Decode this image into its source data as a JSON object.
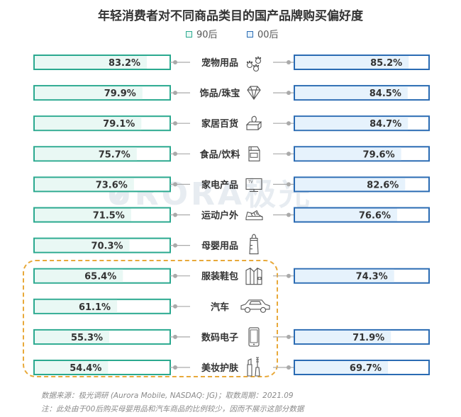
{
  "chart_data": {
    "type": "bar",
    "title": "年轻消费者对不同商品类目的国产品牌购买偏好度",
    "legend_position": "top-center",
    "series": [
      {
        "name": "90后",
        "color": "#2aa98f",
        "fill": "#e9f8f4",
        "values": [
          83.2,
          79.9,
          79.1,
          75.7,
          73.6,
          71.5,
          70.3,
          65.4,
          61.1,
          55.3,
          54.4
        ]
      },
      {
        "name": "00后",
        "color": "#2a6bb3",
        "fill": "#e6f2fc",
        "values": [
          85.2,
          84.5,
          84.7,
          79.6,
          82.6,
          76.6,
          null,
          74.3,
          null,
          71.9,
          69.7
        ]
      }
    ],
    "categories": [
      "宠物用品",
      "饰品/珠宝",
      "家居百货",
      "食品/饮料",
      "家电产品",
      "运动户外",
      "母婴用品",
      "服装鞋包",
      "汽车",
      "数码电子",
      "美妆护肤"
    ],
    "value_labels_90": [
      "83.2%",
      "79.9%",
      "79.1%",
      "75.7%",
      "73.6%",
      "71.5%",
      "70.3%",
      "65.4%",
      "61.1%",
      "55.3%",
      "54.4%"
    ],
    "value_labels_00": [
      "85.2%",
      "84.5%",
      "84.7%",
      "79.6%",
      "82.6%",
      "76.6%",
      "",
      "74.3%",
      "",
      "71.9%",
      "69.7%"
    ],
    "category_icons": [
      "paw-prints-icon",
      "diamond-icon",
      "tissue-box-icon",
      "milk-carton-icon",
      "tv-icon",
      "sneaker-icon",
      "baby-bottle-icon",
      "shirt-icon",
      "car-icon",
      "smartphone-icon",
      "cosmetics-icon"
    ],
    "highlight_color": "#e8a93a",
    "grid": false
  },
  "watermark": "URORA极光",
  "footer": {
    "source": "数据来源：极光调研 (Aurora Mobile, NASDAQ: JG)；取数周期：2021.09",
    "note": "注：此处由于00后购买母婴用品和汽车商品的比例较少，因而不展示这部分数据"
  }
}
